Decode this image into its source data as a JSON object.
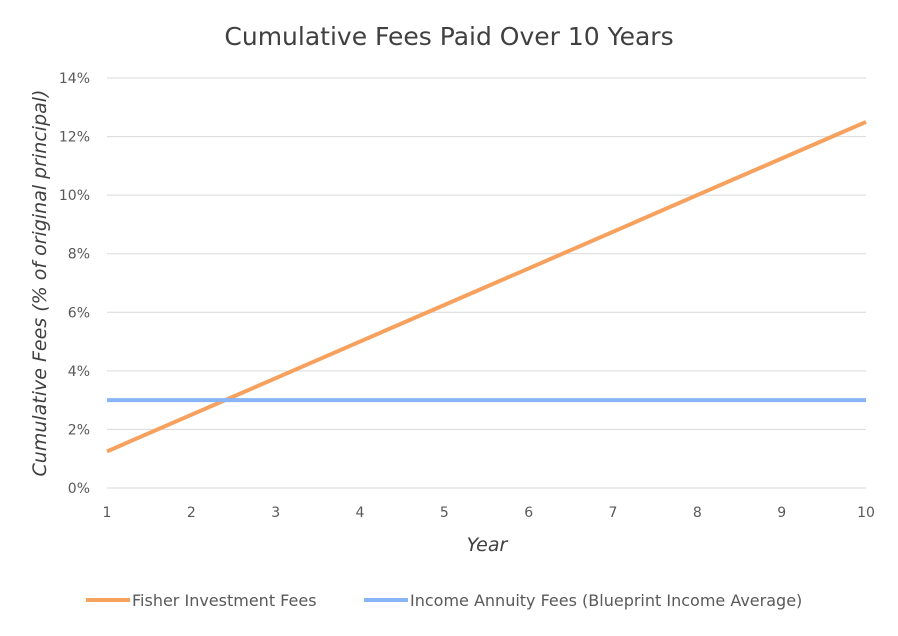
{
  "chart_data": {
    "type": "line",
    "title": "Cumulative Fees Paid Over 10 Years",
    "xlabel": "Year",
    "ylabel": "Cumulative Fees (% of original principal)",
    "x": [
      1,
      2,
      3,
      4,
      5,
      6,
      7,
      8,
      9,
      10
    ],
    "xlim": [
      1,
      10
    ],
    "ylim": [
      0,
      14
    ],
    "y_ticks": [
      0,
      2,
      4,
      6,
      8,
      10,
      12,
      14
    ],
    "y_tick_labels": [
      "0%",
      "2%",
      "4%",
      "6%",
      "8%",
      "10%",
      "12%",
      "14%"
    ],
    "x_tick_labels": [
      "1",
      "2",
      "3",
      "4",
      "5",
      "6",
      "7",
      "8",
      "9",
      "10"
    ],
    "grid": true,
    "legend_position": "bottom",
    "series": [
      {
        "name": "Fisher Investment Fees",
        "color": "#f7a15f",
        "values": [
          1.25,
          2.5,
          3.75,
          5.0,
          6.25,
          7.5,
          8.75,
          10.0,
          11.25,
          12.5
        ]
      },
      {
        "name": "Income Annuity Fees (Blueprint Income Average)",
        "color": "#8ab4f8",
        "values": [
          3.0,
          3.0,
          3.0,
          3.0,
          3.0,
          3.0,
          3.0,
          3.0,
          3.0,
          3.0
        ]
      }
    ]
  }
}
